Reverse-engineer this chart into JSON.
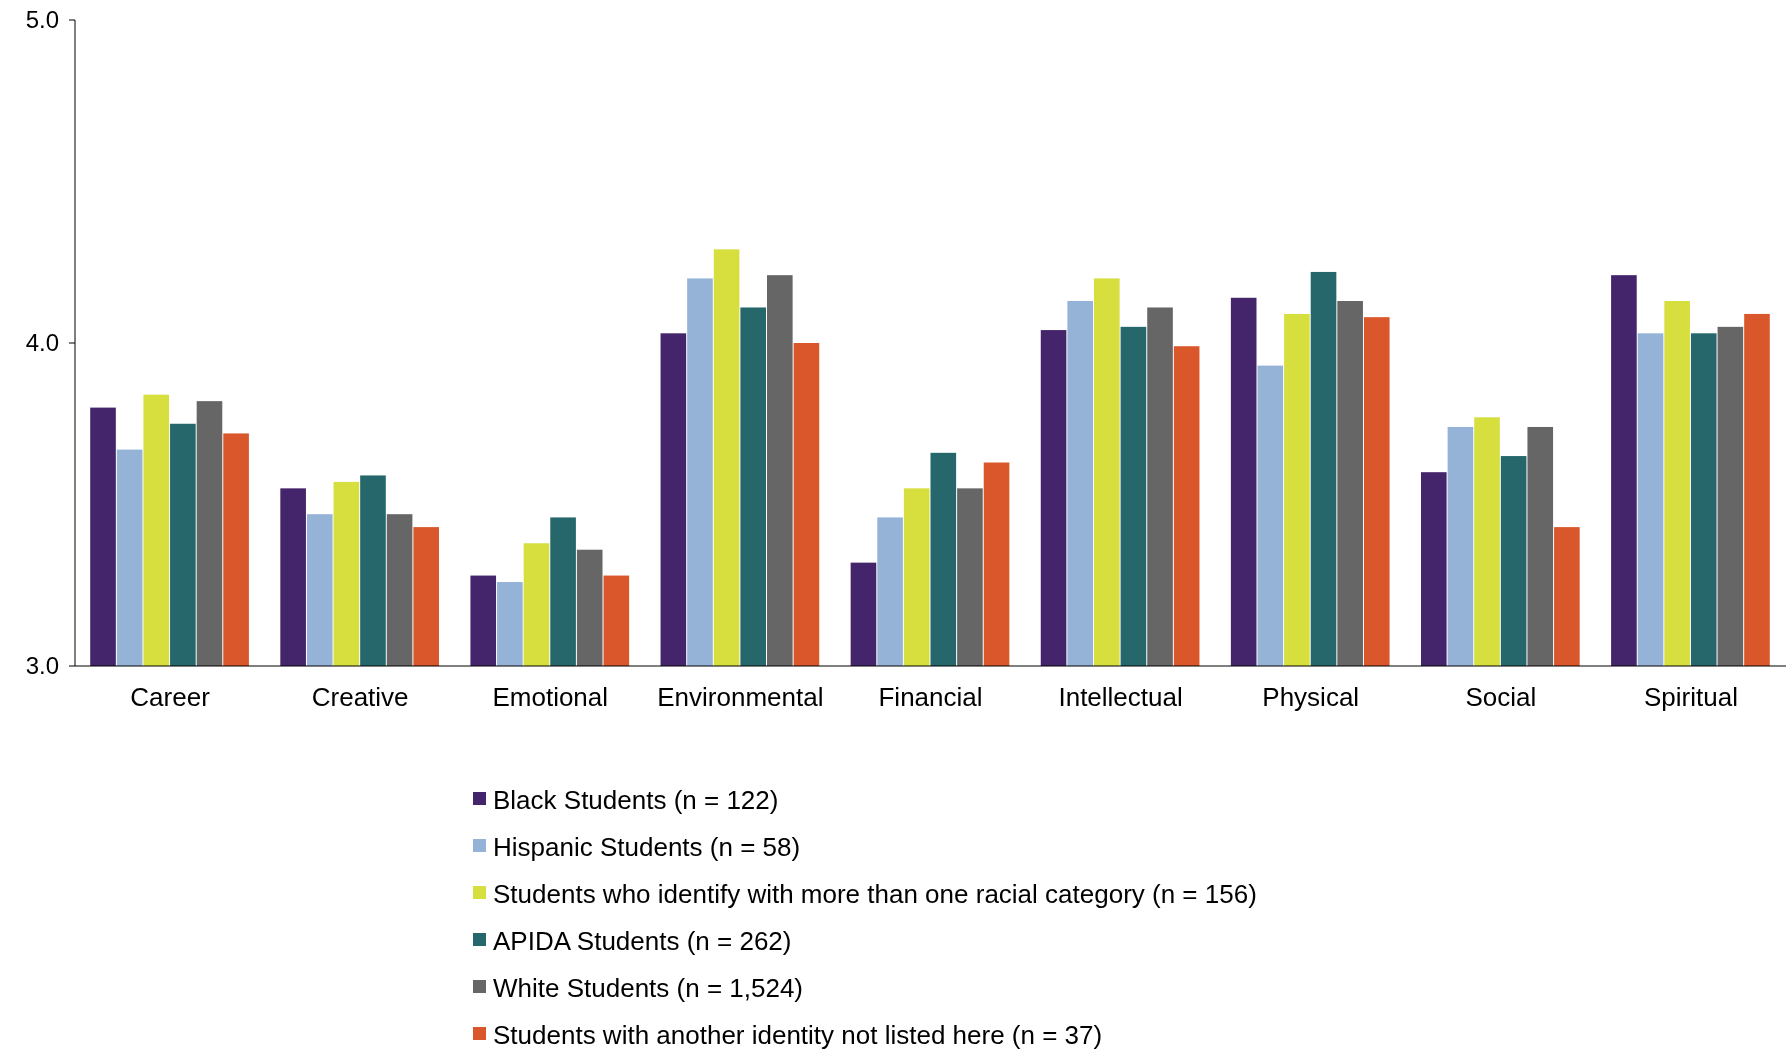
{
  "chart_data": {
    "type": "bar",
    "categories": [
      "Career",
      "Creative",
      "Emotional",
      "Environmental",
      "Financial",
      "Intellectual",
      "Physical",
      "Social",
      "Spiritual"
    ],
    "series": [
      {
        "name": "Black Students (n = 122)",
        "color": "#44246a",
        "values": [
          3.8,
          3.55,
          3.28,
          4.03,
          3.32,
          4.04,
          4.14,
          3.6,
          4.21
        ]
      },
      {
        "name": "Hispanic Students (n = 58)",
        "color": "#95b3d7",
        "values": [
          3.67,
          3.47,
          3.26,
          4.2,
          3.46,
          4.13,
          3.93,
          3.74,
          4.03
        ]
      },
      {
        "name": "Students who identify with more than one racial category (n = 156)",
        "color": "#d7df3f",
        "values": [
          3.84,
          3.57,
          3.38,
          4.29,
          3.55,
          4.2,
          4.09,
          3.77,
          4.13
        ]
      },
      {
        "name": "APIDA Students (n = 262)",
        "color": "#26676b",
        "values": [
          3.75,
          3.59,
          3.46,
          4.11,
          3.66,
          4.05,
          4.22,
          3.65,
          4.03
        ]
      },
      {
        "name": "White Students (n = 1,524)",
        "color": "#666666",
        "values": [
          3.82,
          3.47,
          3.36,
          4.21,
          3.55,
          4.11,
          4.13,
          3.74,
          4.05
        ]
      },
      {
        "name": "Students with another identity not listed here (n = 37)",
        "color": "#d9572a",
        "values": [
          3.72,
          3.43,
          3.28,
          4.0,
          3.63,
          3.99,
          4.08,
          3.43,
          4.09
        ]
      }
    ],
    "ylim": [
      3,
      5
    ],
    "yticks": [
      {
        "value": 3,
        "label": "3.0"
      },
      {
        "value": 4,
        "label": "4.0"
      },
      {
        "value": 5,
        "label": "5.0"
      }
    ],
    "grid": false,
    "legend": "bottom"
  }
}
